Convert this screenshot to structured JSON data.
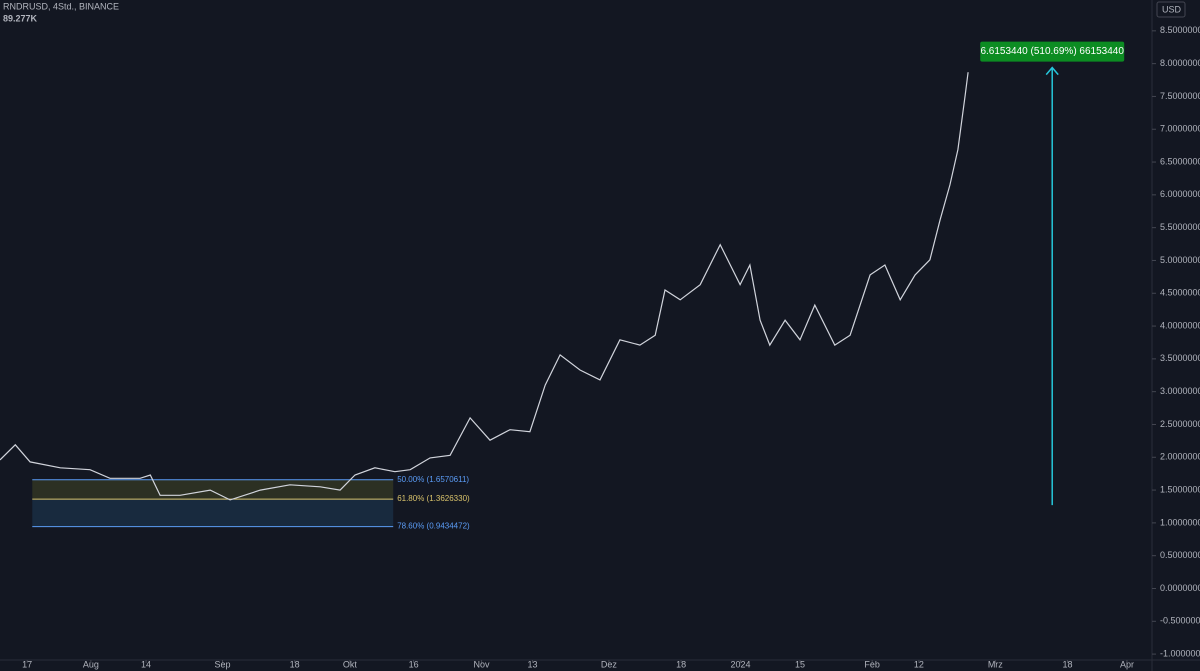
{
  "chart_data": {
    "type": "line",
    "title": "RNDRUSD, 4Std., BINANCE",
    "subtitle": "89.277K",
    "currency": "USD",
    "color": "#d1d4dc",
    "grid": false,
    "x": [
      -6.4,
      -2.8,
      0.7,
      7.8,
      14.8,
      19.5,
      26.6,
      29.0,
      31.3,
      36.0,
      43.1,
      47.8,
      54.9,
      61.9,
      69.0,
      73.7,
      77.2,
      81.9,
      86.6,
      90.2,
      94.9,
      99.6,
      104.3,
      109.0,
      113.7,
      118.4,
      122.0,
      125.5,
      130.2,
      134.9,
      139.6,
      144.3,
      147.9,
      150.2,
      153.8,
      158.5,
      163.2,
      167.9,
      170.2,
      172.6,
      174.9,
      178.5,
      182.0,
      185.5,
      190.2,
      193.8,
      198.5,
      202.0,
      205.6,
      209.1,
      212.6,
      215.0,
      217.3,
      219.2,
      220.9,
      221.6
    ],
    "values": [
      1.96,
      2.19,
      1.93,
      1.84,
      1.81,
      1.68,
      1.68,
      1.73,
      1.42,
      1.42,
      1.5,
      1.35,
      1.5,
      1.58,
      1.55,
      1.5,
      1.73,
      1.84,
      1.78,
      1.81,
      1.99,
      2.03,
      2.6,
      2.26,
      2.42,
      2.39,
      3.1,
      3.56,
      3.33,
      3.18,
      3.79,
      3.71,
      3.86,
      4.55,
      4.4,
      4.63,
      5.24,
      4.63,
      4.93,
      4.09,
      3.71,
      4.09,
      3.79,
      4.32,
      3.71,
      3.86,
      4.78,
      4.93,
      4.4,
      4.78,
      5.01,
      5.62,
      6.15,
      6.69,
      7.52,
      7.87
    ],
    "xlim": [
      -6.4,
      264.9
    ],
    "xticks": [
      {
        "value": 0,
        "label": "17"
      },
      {
        "value": 15,
        "label": "Aug"
      },
      {
        "value": 28,
        "label": "14"
      },
      {
        "value": 46,
        "label": "Sep"
      },
      {
        "value": 63,
        "label": "18"
      },
      {
        "value": 76,
        "label": "Okt"
      },
      {
        "value": 91,
        "label": "16"
      },
      {
        "value": 107,
        "label": "Nov"
      },
      {
        "value": 119,
        "label": "13"
      },
      {
        "value": 137,
        "label": "Dez"
      },
      {
        "value": 154,
        "label": "18"
      },
      {
        "value": 168,
        "label": "2024"
      },
      {
        "value": 182,
        "label": "15"
      },
      {
        "value": 199,
        "label": "Feb"
      },
      {
        "value": 210,
        "label": "12"
      },
      {
        "value": 228,
        "label": "Mrz"
      },
      {
        "value": 245,
        "label": "18"
      },
      {
        "value": 259,
        "label": "Apr"
      }
    ],
    "ylim": [
      -1.09,
      8.97
    ],
    "yticks": [
      {
        "value": 8.5,
        "label": "8.5000000"
      },
      {
        "value": 8,
        "label": "8.0000000"
      },
      {
        "value": 7.5,
        "label": "7.5000000"
      },
      {
        "value": 7,
        "label": "7.0000000"
      },
      {
        "value": 6.5,
        "label": "6.5000000"
      },
      {
        "value": 6,
        "label": "6.0000000"
      },
      {
        "value": 5.5,
        "label": "5.5000000"
      },
      {
        "value": 5,
        "label": "5.0000000"
      },
      {
        "value": 4.5,
        "label": "4.5000000"
      },
      {
        "value": 4,
        "label": "4.0000000"
      },
      {
        "value": 3.5,
        "label": "3.5000000"
      },
      {
        "value": 3,
        "label": "3.0000000"
      },
      {
        "value": 2.5,
        "label": "2.5000000"
      },
      {
        "value": 2,
        "label": "2.0000000"
      },
      {
        "value": 1.5,
        "label": "1.5000000"
      },
      {
        "value": 1,
        "label": "1.0000000"
      },
      {
        "value": 0.5,
        "label": "0.5000000"
      },
      {
        "value": 0,
        "label": "0.0000000"
      },
      {
        "value": -0.5,
        "label": "-0.5000000"
      },
      {
        "value": -1,
        "label": "-1.0000000"
      }
    ],
    "fib": {
      "x": [
        1.2,
        86.2
      ],
      "levels": [
        {
          "value": 1.6570611,
          "label": "50.00% (1.6570611)",
          "color": "#5b9cf6",
          "fill": "rgba(120,123,40,0.25)"
        },
        {
          "value": 1.362633,
          "label": "61.80% (1.3626330)",
          "color": "#d9c36b",
          "fill": "rgba(38,86,130,0.3)"
        },
        {
          "value": 0.9434472,
          "label": "78.60% (0.9434472)",
          "color": "#5b9cf6"
        }
      ]
    },
    "measure": {
      "label": "6.6153440 (510.69%) 66153440",
      "x": 241.4,
      "from": 1.27,
      "to": 7.94,
      "color": "#26c6da",
      "label_color": "#0c8c22"
    }
  }
}
